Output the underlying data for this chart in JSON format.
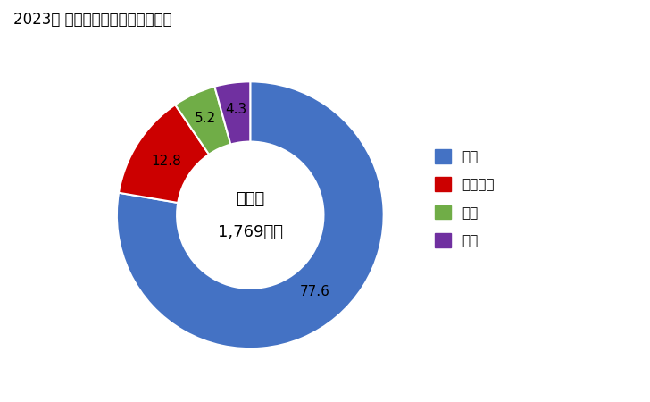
{
  "title": "2023年 輸出相手国のシェア（％）",
  "labels": [
    "中国",
    "ベトナム",
    "香港",
    "韓国"
  ],
  "values": [
    77.6,
    12.8,
    5.2,
    4.3
  ],
  "colors": [
    "#4472C4",
    "#CC0000",
    "#70AD47",
    "#7030A0"
  ],
  "center_label1": "総　額",
  "center_label2": "1,769万円",
  "background_color": "#FFFFFF"
}
